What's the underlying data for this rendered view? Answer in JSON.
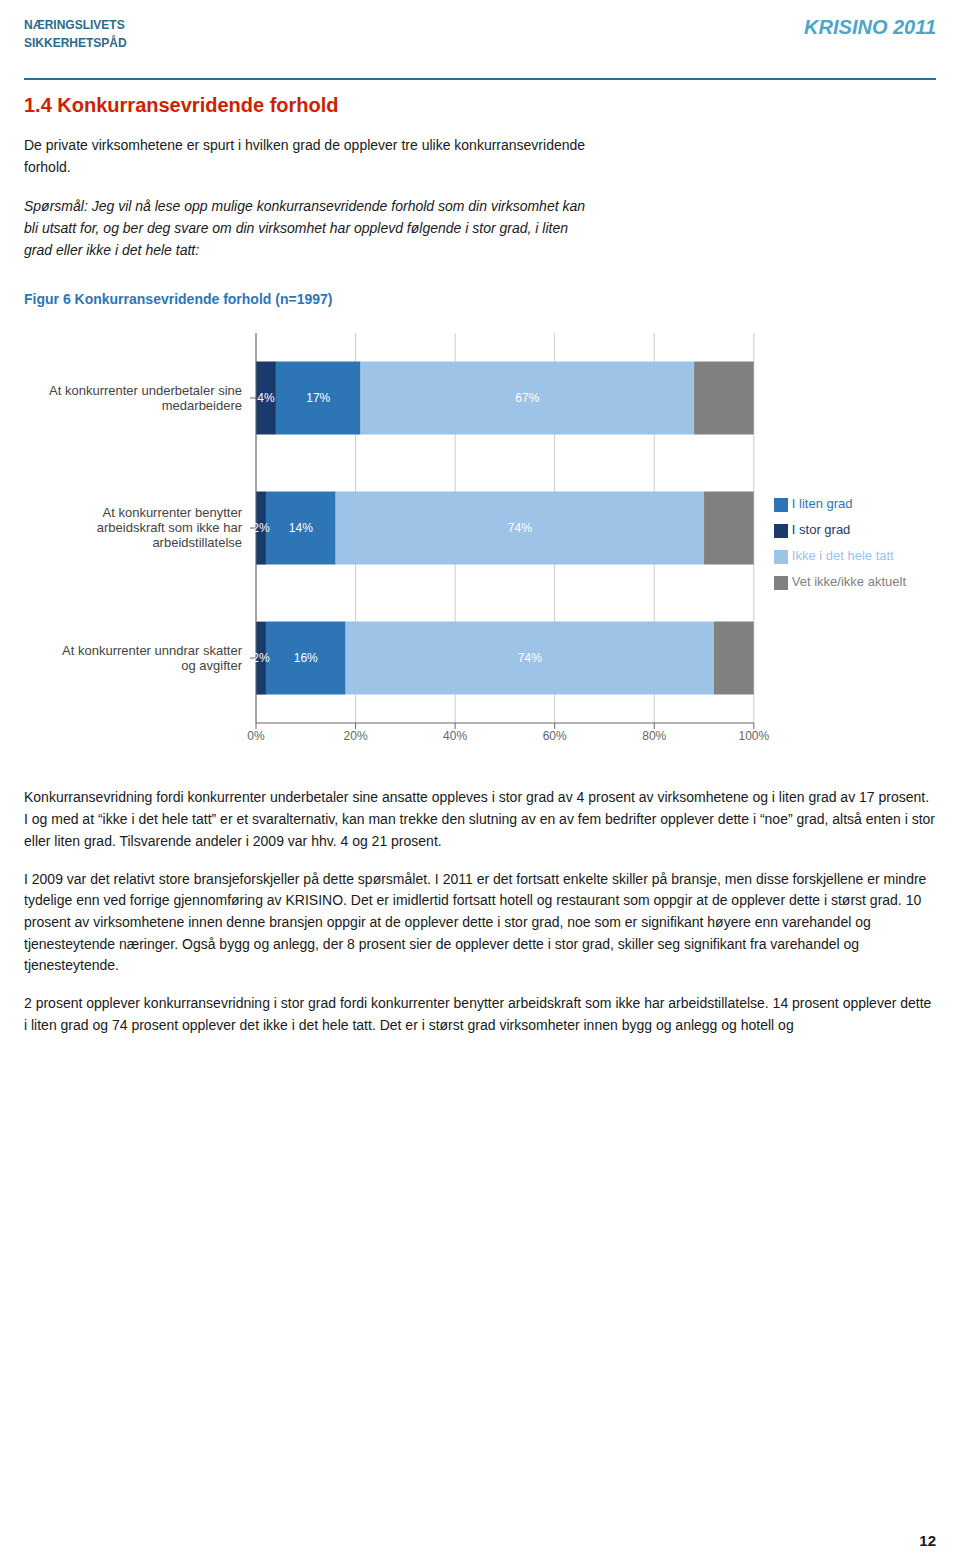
{
  "chart_data": {
    "type": "bar",
    "orientation": "horizontal",
    "stacked": true,
    "title": "Figur 6 Konkurransevridende forhold (n=1997)",
    "subtitle": "De private virksomhetene er spurt i hvilken grad de opplever tre ulike konkurransevridende\nforhold.",
    "annotations": [
      "NÆRINGSLIVETS",
      "SIKKERHETSРÅD",
      "KRISINO 2011",
      "1.4 Konkurransevridende forhold",
      "Spørsmål: Jeg vil nå lese opp mulige konkurransevridende forhold som din virksomhet kan\nbli utsatt for, og ber deg svare om din virksomhet har opplevd følgende i stor grad, i liten\ngrad eller ikke i det hele tatt:",
      "Konkurransevridning fordi konkurrenter underbetaler sine ansatte oppleves i stor grad av 4 prosent av virksomhetene og i liten grad av 17 prosent. I og med at “ikke i det hele tatt” er et svaralternativ, kan man trekke den slutning av en av fem bedrifter opplever dette i “noe” grad, altså enten i stor eller liten grad. Tilsvarende andeler i 2009 var hhv. 4 og 21 prosent.",
      "I 2009 var det relativt store bransjeforskjeller på dette spørsmålet. I 2011 er det fortsatt enkelte skiller på bransje, men disse forskjellene er mindre tydelige enn ved forrige gjennomføring av KRISINO. Det er imidlertid fortsatt hotell og restaurant som oppgir at de opplever dette i størst grad. 10 prosent av virksomhetene innen denne bransjen oppgir at de opplever dette i stor grad, noe som er signifikant høyere enn varehandel og tjenesteytende næringer. Også bygg og anlegg, der 8 prosent sier de opplever dette i stor grad, skiller seg signifikant fra varehandel og tjenesteytende.",
      "2 prosent opplever konkurransevridning i stor grad fordi konkurrenter benytter arbeidskraft som ikke har arbeidstillatelse. 14 prosent opplever dette i liten grad og 74 prosent opplever det ikke i det hele tatt. Det er i størst grad virksomheter innen bygg og anlegg og hotell og",
      "12"
    ],
    "categories": [
      "At konkurrenter underbetaler sine\nmedarbeidere",
      "At konkurrenter benytter\narbeidskraft som ikke har\narbeidstillatelse",
      "At konkurrenter unndrar skatter\nog avgifter"
    ],
    "series": [
      {
        "name": "I stor grad",
        "color": "#1a3a6b",
        "values": [
          4,
          2,
          2
        ],
        "value_labels": [
          "4%",
          "2%",
          "2%"
        ]
      },
      {
        "name": "I liten grad",
        "color": "#2e75b6",
        "values": [
          17,
          14,
          16
        ],
        "value_labels": [
          "17%",
          "14%",
          "16%"
        ]
      },
      {
        "name": "Ikke i det hele tatt",
        "color": "#9dc3e6",
        "values": [
          67,
          74,
          74
        ],
        "value_labels": [
          "67%",
          "74%",
          "74%"
        ]
      },
      {
        "name": "Vet ikke/ikke aktuelt",
        "color": "#808080",
        "values": [
          12,
          10,
          8
        ],
        "value_labels": [
          null,
          null,
          null
        ]
      }
    ],
    "data_labels": true,
    "xlim": [
      0,
      100
    ],
    "xticks": [
      {
        "value": 0,
        "label": "0%"
      },
      {
        "value": 20,
        "label": "20%"
      },
      {
        "value": 40,
        "label": "40%"
      },
      {
        "value": 60,
        "label": "60%"
      },
      {
        "value": 80,
        "label": "80%"
      },
      {
        "value": 100,
        "label": "100%"
      }
    ],
    "grid": true,
    "legend": "right"
  }
}
